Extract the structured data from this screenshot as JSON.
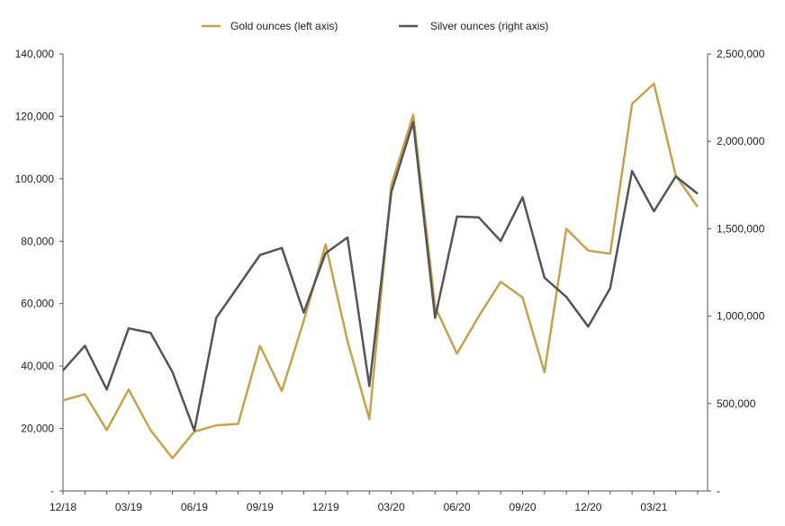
{
  "chart_data": {
    "type": "line",
    "title": "",
    "xlabel": "",
    "ylabel": "",
    "legend_position": "top-center",
    "grid": false,
    "x": [
      "12/18",
      "01/19",
      "02/19",
      "03/19",
      "04/19",
      "05/19",
      "06/19",
      "07/19",
      "08/19",
      "09/19",
      "10/19",
      "11/19",
      "12/19",
      "01/20",
      "02/20",
      "03/20",
      "04/20",
      "05/20",
      "06/20",
      "07/20",
      "08/20",
      "09/20",
      "10/20",
      "11/20",
      "12/20",
      "01/21",
      "02/21",
      "03/21",
      "04/21",
      "05/21"
    ],
    "x_tick_labels": [
      "12/18",
      "03/19",
      "06/19",
      "09/19",
      "12/19",
      "03/20",
      "06/20",
      "09/20",
      "12/20",
      "03/21"
    ],
    "y_left": {
      "ylim": [
        0,
        140000
      ],
      "ticks": [
        0,
        20000,
        40000,
        60000,
        80000,
        100000,
        120000,
        140000
      ],
      "tick_labels": [
        "-",
        "20,000",
        "40,000",
        "60,000",
        "80,000",
        "100,000",
        "120,000",
        "140,000"
      ]
    },
    "y_right": {
      "ylim": [
        0,
        2500000
      ],
      "ticks": [
        0,
        500000,
        1000000,
        1500000,
        2000000,
        2500000
      ],
      "tick_labels": [
        "-",
        "500,000",
        "1,000,000",
        "1,500,000",
        "2,000,000",
        "2,500,000"
      ]
    },
    "series": [
      {
        "name": "Gold ounces (left axis)",
        "axis": "left",
        "color": "#c6a24e",
        "values": [
          29000,
          31000,
          19500,
          32500,
          19500,
          10500,
          19000,
          21000,
          21500,
          46500,
          32000,
          54500,
          79000,
          48000,
          23000,
          98000,
          120500,
          59000,
          44000,
          56000,
          67000,
          62000,
          38000,
          84000,
          77000,
          76000,
          124000,
          130500,
          101000,
          91000
        ]
      },
      {
        "name": "Silver ounces (right axis)",
        "axis": "left_scale_right",
        "color": "#555555",
        "values": [
          690000,
          830000,
          580000,
          930000,
          905000,
          680000,
          345000,
          990000,
          1170000,
          1350000,
          1390000,
          1020000,
          1360000,
          1450000,
          600000,
          1710000,
          2110000,
          990000,
          1570000,
          1565000,
          1430000,
          1680000,
          1220000,
          1110000,
          940000,
          1160000,
          1830000,
          1600000,
          1800000,
          1700000
        ]
      }
    ]
  }
}
